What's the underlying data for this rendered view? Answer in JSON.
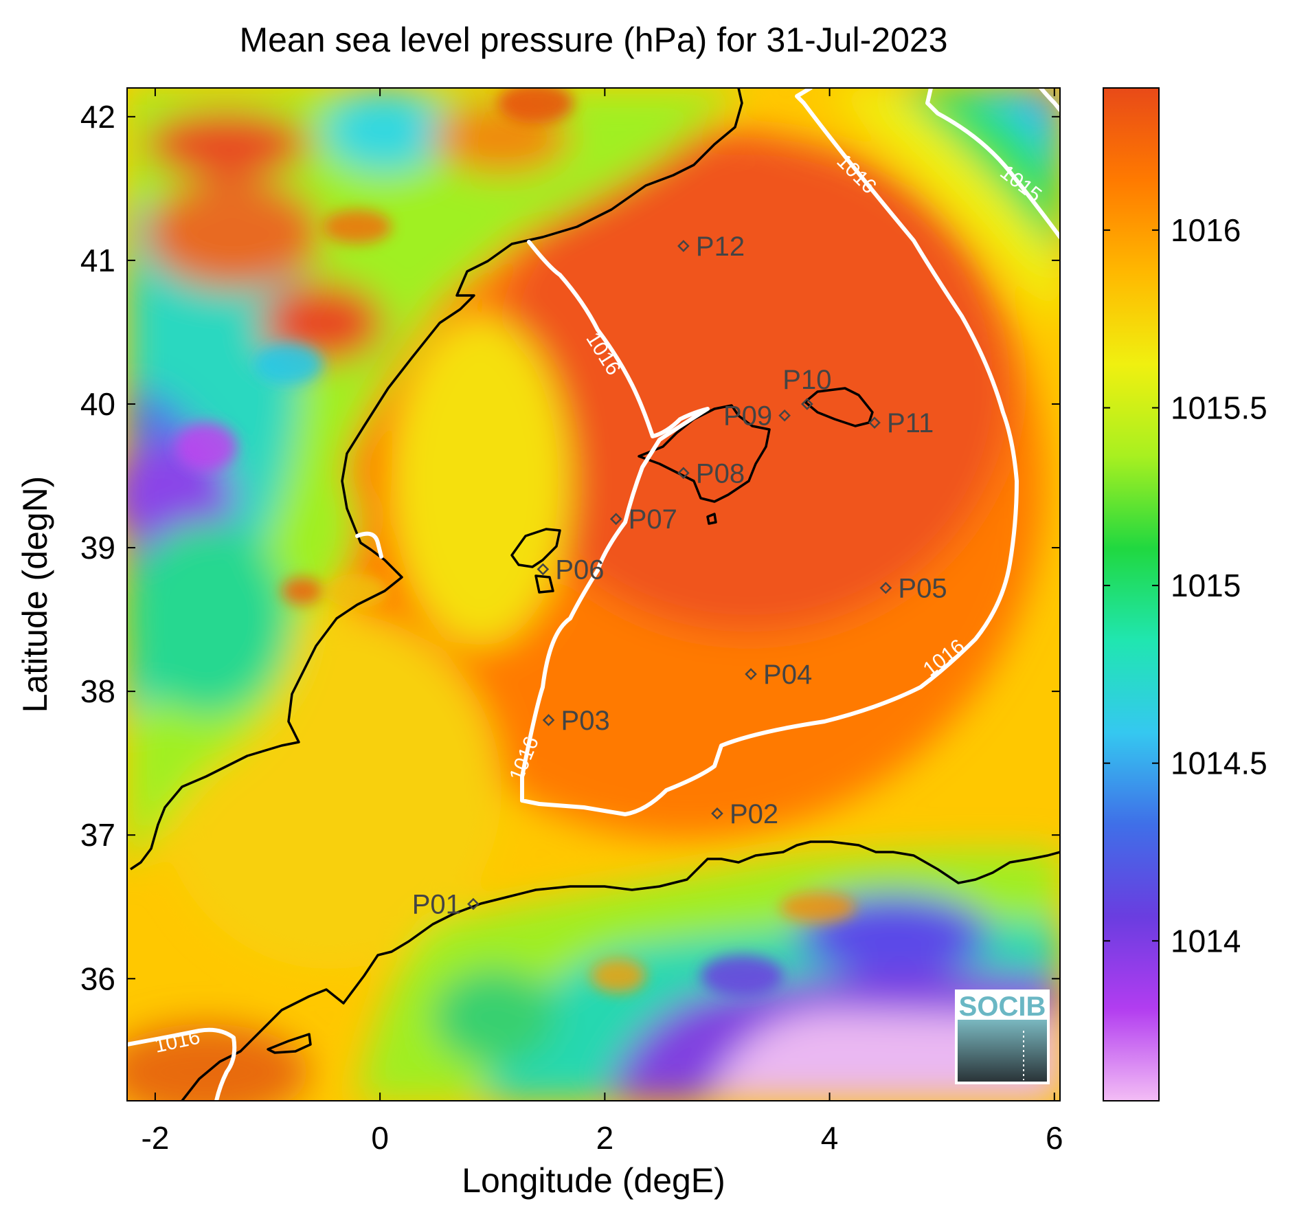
{
  "title": "Mean sea level pressure (hPa) for 31-Jul-2023",
  "xaxis": {
    "label": "Longitude (degE)",
    "range": [
      -2.25,
      6.05
    ],
    "ticks": [
      -2,
      0,
      2,
      4,
      6
    ],
    "tick_labels": [
      "-2",
      "0",
      "2",
      "4",
      "6"
    ]
  },
  "yaxis": {
    "label": "Latitude (degN)",
    "range": [
      35.15,
      42.2
    ],
    "ticks": [
      36,
      37,
      38,
      39,
      40,
      41,
      42
    ],
    "tick_labels": [
      "36",
      "37",
      "38",
      "39",
      "40",
      "41",
      "42"
    ]
  },
  "colorbar": {
    "range": [
      1013.55,
      1016.4
    ],
    "ticks": [
      1014,
      1014.5,
      1015,
      1015.5,
      1016
    ],
    "tick_labels": [
      "1014",
      "1014.5",
      "1015",
      "1015.5",
      "1016"
    ],
    "colormap": [
      "#f3bdf5",
      "#b23df0",
      "#6a3de0",
      "#3f6fe8",
      "#35c8f0",
      "#20e6b0",
      "#20d840",
      "#a8f020",
      "#f0f010",
      "#ffb800",
      "#ff7a00",
      "#e84a18"
    ]
  },
  "contours": [
    {
      "level": 1016,
      "label": "1016"
    },
    {
      "level": 1015,
      "label": "1015"
    }
  ],
  "stations": [
    {
      "id": "P01",
      "lon": 0.83,
      "lat": 36.52,
      "label_side": "left"
    },
    {
      "id": "P02",
      "lon": 3.0,
      "lat": 37.15,
      "label_side": "right"
    },
    {
      "id": "P03",
      "lon": 1.5,
      "lat": 37.8,
      "label_side": "right"
    },
    {
      "id": "P04",
      "lon": 3.3,
      "lat": 38.12,
      "label_side": "right"
    },
    {
      "id": "P05",
      "lon": 4.5,
      "lat": 38.72,
      "label_side": "right"
    },
    {
      "id": "P06",
      "lon": 1.45,
      "lat": 38.85,
      "label_side": "right"
    },
    {
      "id": "P07",
      "lon": 2.1,
      "lat": 39.2,
      "label_side": "right"
    },
    {
      "id": "P08",
      "lon": 2.7,
      "lat": 39.52,
      "label_side": "right"
    },
    {
      "id": "P09",
      "lon": 3.6,
      "lat": 39.92,
      "label_side": "left"
    },
    {
      "id": "P10",
      "lon": 3.8,
      "lat": 40.0,
      "label_side": "top"
    },
    {
      "id": "P11",
      "lon": 4.4,
      "lat": 39.87,
      "label_side": "right"
    },
    {
      "id": "P12",
      "lon": 2.7,
      "lat": 41.1,
      "label_side": "right"
    }
  ],
  "logo": {
    "text": "SOCIB"
  }
}
